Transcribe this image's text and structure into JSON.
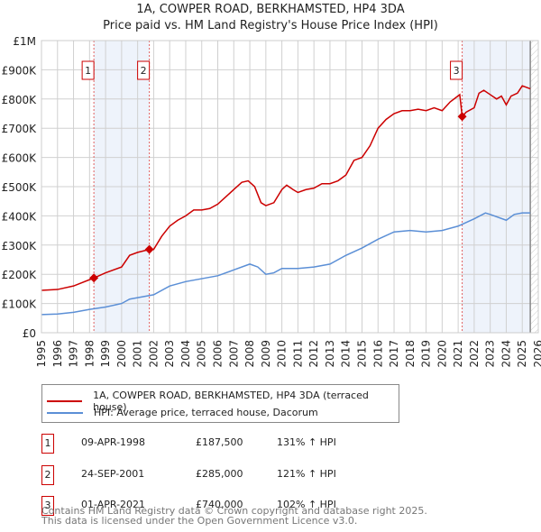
{
  "title": "1A, COWPER ROAD, BERKHAMSTED, HP4 3DA",
  "subtitle": "Price paid vs. HM Land Registry's House Price Index (HPI)",
  "colors": {
    "price": "#cc0000",
    "hpi": "#5b8fd6",
    "shade": "#eef3fb",
    "marker": "#cc0000"
  },
  "chart_data": {
    "type": "line",
    "xlim": [
      1995,
      2026
    ],
    "ylim": [
      0,
      1000000
    ],
    "y_ticks": [
      {
        "v": 0,
        "label": "£0"
      },
      {
        "v": 100000,
        "label": "£100K"
      },
      {
        "v": 200000,
        "label": "£200K"
      },
      {
        "v": 300000,
        "label": "£300K"
      },
      {
        "v": 400000,
        "label": "£400K"
      },
      {
        "v": 500000,
        "label": "£500K"
      },
      {
        "v": 600000,
        "label": "£600K"
      },
      {
        "v": 700000,
        "label": "£700K"
      },
      {
        "v": 800000,
        "label": "£800K"
      },
      {
        "v": 900000,
        "label": "£900K"
      },
      {
        "v": 1000000,
        "label": "£1M"
      }
    ],
    "x_ticks": [
      "1995",
      "1996",
      "1997",
      "1998",
      "1999",
      "2000",
      "2001",
      "2002",
      "2003",
      "2004",
      "2005",
      "2006",
      "2007",
      "2008",
      "2009",
      "2010",
      "2011",
      "2012",
      "2013",
      "2014",
      "2015",
      "2016",
      "2017",
      "2018",
      "2019",
      "2020",
      "2021",
      "2022",
      "2023",
      "2024",
      "2025",
      "2026"
    ],
    "shaded_ranges": [
      [
        1998.27,
        2001.73
      ],
      [
        2021.25,
        2025.5
      ]
    ],
    "forecast_start": 2025.5,
    "series": [
      {
        "name": "1A, COWPER ROAD, BERKHAMSTED, HP4 3DA (terraced house)",
        "x": [
          1995,
          1996,
          1997,
          1998.27,
          1999,
          2000,
          2000.5,
          2001,
          2001.73,
          2002,
          2002.5,
          2003,
          2003.5,
          2004,
          2004.5,
          2005,
          2005.5,
          2006,
          2006.5,
          2007,
          2007.5,
          2007.9,
          2008.3,
          2008.7,
          2009,
          2009.5,
          2010,
          2010.3,
          2010.7,
          2011,
          2011.5,
          2012,
          2012.5,
          2013,
          2013.5,
          2014,
          2014.5,
          2015,
          2015.5,
          2016,
          2016.5,
          2017,
          2017.5,
          2018,
          2018.5,
          2019,
          2019.5,
          2020,
          2020.5,
          2021.1,
          2021.25,
          2021.5,
          2022,
          2022.3,
          2022.6,
          2023,
          2023.4,
          2023.7,
          2024,
          2024.3,
          2024.7,
          2025,
          2025.5
        ],
        "values": [
          145000,
          148000,
          160000,
          187500,
          205000,
          225000,
          265000,
          275000,
          285000,
          285000,
          330000,
          365000,
          385000,
          400000,
          420000,
          420000,
          425000,
          440000,
          465000,
          490000,
          515000,
          520000,
          500000,
          445000,
          435000,
          445000,
          490000,
          505000,
          490000,
          480000,
          490000,
          495000,
          510000,
          510000,
          520000,
          540000,
          590000,
          600000,
          640000,
          700000,
          730000,
          750000,
          760000,
          760000,
          765000,
          760000,
          770000,
          760000,
          790000,
          815000,
          740000,
          755000,
          770000,
          820000,
          830000,
          815000,
          800000,
          810000,
          780000,
          810000,
          820000,
          845000,
          835000
        ]
      },
      {
        "name": "HPI: Average price, terraced house, Dacorum",
        "x": [
          1995,
          1996,
          1997,
          1998,
          1999,
          2000,
          2000.5,
          2001,
          2002,
          2003,
          2004,
          2005,
          2006,
          2007,
          2008,
          2008.5,
          2009,
          2009.5,
          2010,
          2011,
          2012,
          2013,
          2014,
          2015,
          2016,
          2017,
          2018,
          2019,
          2020,
          2021,
          2022,
          2022.7,
          2023,
          2024,
          2024.5,
          2025,
          2025.5
        ],
        "values": [
          62000,
          64000,
          70000,
          80000,
          88000,
          100000,
          115000,
          120000,
          130000,
          160000,
          175000,
          185000,
          195000,
          215000,
          235000,
          225000,
          200000,
          205000,
          220000,
          220000,
          225000,
          235000,
          265000,
          290000,
          320000,
          345000,
          350000,
          345000,
          350000,
          365000,
          390000,
          410000,
          405000,
          385000,
          405000,
          410000,
          410000
        ]
      }
    ],
    "sales": [
      {
        "label": "1",
        "x": 1998.27,
        "price": 187500
      },
      {
        "label": "2",
        "x": 2001.73,
        "price": 285000
      },
      {
        "label": "3",
        "x": 2021.25,
        "price": 740000
      }
    ]
  },
  "legend": {
    "price": "1A, COWPER ROAD, BERKHAMSTED, HP4 3DA (terraced house)",
    "hpi": "HPI: Average price, terraced house, Dacorum"
  },
  "transactions": [
    {
      "num": "1",
      "date": "09-APR-1998",
      "price": "£187,500",
      "hpi": "131% ↑ HPI"
    },
    {
      "num": "2",
      "date": "24-SEP-2001",
      "price": "£285,000",
      "hpi": "121% ↑ HPI"
    },
    {
      "num": "3",
      "date": "01-APR-2021",
      "price": "£740,000",
      "hpi": "102% ↑ HPI"
    }
  ],
  "footer": {
    "line1": "Contains HM Land Registry data © Crown copyright and database right 2025.",
    "line2": "This data is licensed under the Open Government Licence v3.0."
  }
}
